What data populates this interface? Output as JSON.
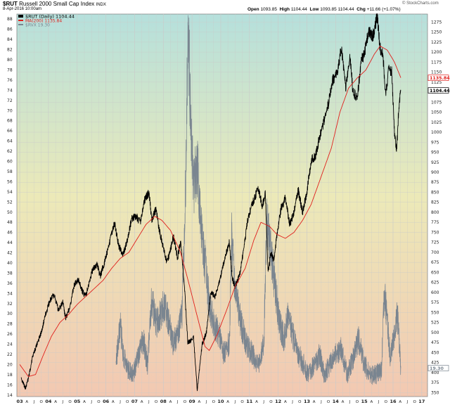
{
  "header": {
    "symbol": "$RUT",
    "name": "Russell 2000 Small Cap Index",
    "exchange": "INDX",
    "date_line": "8-Apr-2016 10:00am",
    "open_label": "Open",
    "open_value": "1093.85",
    "high_label": "High",
    "high_value": "1104.44",
    "low_label": "Low",
    "low_value": "1093.85",
    "last_value": "1104.44",
    "chg_label": "Chg",
    "chg_value": "+11.66 (+1.07%)",
    "brand": "© StockCharts.com"
  },
  "legend": {
    "series1": "$RUT (Daily) 1104.44",
    "series2": "MA(200) 1135.84",
    "series3": "$RVX 19.30"
  },
  "colors": {
    "price": "#000000",
    "ma": "#e0201c",
    "rvx": "#7a8590",
    "bg_top": "#b5e0dc",
    "bg_mid": "#ece9b8",
    "bg_bottom": "#f2c8b2"
  },
  "chart_data": {
    "type": "line",
    "x_axis": {
      "labels": [
        {
          "t": 2003.0,
          "label": "03"
        },
        {
          "t": 2003.25,
          "label": "A"
        },
        {
          "t": 2003.5,
          "label": "J"
        },
        {
          "t": 2003.75,
          "label": "O"
        },
        {
          "t": 2004.0,
          "label": "04"
        },
        {
          "t": 2004.25,
          "label": "A"
        },
        {
          "t": 2004.5,
          "label": "J"
        },
        {
          "t": 2004.75,
          "label": "O"
        },
        {
          "t": 2005.0,
          "label": "05"
        },
        {
          "t": 2005.25,
          "label": "A"
        },
        {
          "t": 2005.5,
          "label": "J"
        },
        {
          "t": 2005.75,
          "label": "O"
        },
        {
          "t": 2006.0,
          "label": "06"
        },
        {
          "t": 2006.25,
          "label": "A"
        },
        {
          "t": 2006.5,
          "label": "J"
        },
        {
          "t": 2006.75,
          "label": "O"
        },
        {
          "t": 2007.0,
          "label": "07"
        },
        {
          "t": 2007.25,
          "label": "A"
        },
        {
          "t": 2007.5,
          "label": "J"
        },
        {
          "t": 2007.75,
          "label": "O"
        },
        {
          "t": 2008.0,
          "label": "08"
        },
        {
          "t": 2008.25,
          "label": "A"
        },
        {
          "t": 2008.5,
          "label": "J"
        },
        {
          "t": 2008.75,
          "label": "O"
        },
        {
          "t": 2009.0,
          "label": "09"
        },
        {
          "t": 2009.25,
          "label": "A"
        },
        {
          "t": 2009.5,
          "label": "J"
        },
        {
          "t": 2009.75,
          "label": "O"
        },
        {
          "t": 2010.0,
          "label": "10"
        },
        {
          "t": 2010.25,
          "label": "A"
        },
        {
          "t": 2010.5,
          "label": "J"
        },
        {
          "t": 2010.75,
          "label": "O"
        },
        {
          "t": 2011.0,
          "label": "11"
        },
        {
          "t": 2011.25,
          "label": "A"
        },
        {
          "t": 2011.5,
          "label": "J"
        },
        {
          "t": 2011.75,
          "label": "O"
        },
        {
          "t": 2012.0,
          "label": "12"
        },
        {
          "t": 2012.25,
          "label": "A"
        },
        {
          "t": 2012.5,
          "label": "J"
        },
        {
          "t": 2012.75,
          "label": "O"
        },
        {
          "t": 2013.0,
          "label": "13"
        },
        {
          "t": 2013.25,
          "label": "A"
        },
        {
          "t": 2013.5,
          "label": "J"
        },
        {
          "t": 2013.75,
          "label": "O"
        },
        {
          "t": 2014.0,
          "label": "14"
        },
        {
          "t": 2014.25,
          "label": "A"
        },
        {
          "t": 2014.5,
          "label": "J"
        },
        {
          "t": 2014.75,
          "label": "O"
        },
        {
          "t": 2015.0,
          "label": "15"
        },
        {
          "t": 2015.25,
          "label": "A"
        },
        {
          "t": 2015.5,
          "label": "J"
        },
        {
          "t": 2015.75,
          "label": "O"
        },
        {
          "t": 2016.0,
          "label": "16"
        },
        {
          "t": 2016.25,
          "label": "A"
        },
        {
          "t": 2016.5,
          "label": "J"
        },
        {
          "t": 2016.75,
          "label": "O"
        },
        {
          "t": 2017.0,
          "label": "17"
        }
      ],
      "range": [
        2002.9,
        2017.2
      ]
    },
    "left_axis": {
      "ticks": [
        14,
        16,
        18,
        20,
        22,
        24,
        26,
        28,
        30,
        32,
        34,
        36,
        38,
        40,
        42,
        44,
        46,
        48,
        50,
        52,
        54,
        56,
        58,
        60,
        62,
        64,
        66,
        68,
        70,
        72,
        74,
        76,
        78,
        80,
        82,
        84,
        86,
        88
      ],
      "range": [
        13.7,
        89
      ]
    },
    "right_axis": {
      "ticks": [
        350,
        375,
        400,
        425,
        450,
        475,
        500,
        525,
        550,
        575,
        600,
        625,
        650,
        675,
        700,
        725,
        750,
        775,
        800,
        825,
        850,
        875,
        900,
        925,
        950,
        975,
        1000,
        1025,
        1050,
        1075,
        1100,
        1125,
        1150,
        1175,
        1200,
        1225,
        1250,
        1275
      ],
      "range": [
        340,
        1295
      ]
    },
    "series": [
      {
        "name": "$RUT (Daily)",
        "axis": "right",
        "points": [
          [
            2003.05,
            385
          ],
          [
            2003.2,
            360
          ],
          [
            2003.3,
            385
          ],
          [
            2003.45,
            440
          ],
          [
            2003.6,
            470
          ],
          [
            2003.75,
            500
          ],
          [
            2003.9,
            545
          ],
          [
            2004.05,
            580
          ],
          [
            2004.2,
            595
          ],
          [
            2004.35,
            555
          ],
          [
            2004.5,
            575
          ],
          [
            2004.6,
            535
          ],
          [
            2004.75,
            565
          ],
          [
            2004.9,
            620
          ],
          [
            2005.05,
            630
          ],
          [
            2005.2,
            600
          ],
          [
            2005.3,
            590
          ],
          [
            2005.4,
            620
          ],
          [
            2005.55,
            660
          ],
          [
            2005.7,
            670
          ],
          [
            2005.8,
            640
          ],
          [
            2005.95,
            675
          ],
          [
            2006.1,
            715
          ],
          [
            2006.3,
            775
          ],
          [
            2006.45,
            715
          ],
          [
            2006.6,
            695
          ],
          [
            2006.75,
            730
          ],
          [
            2006.9,
            785
          ],
          [
            2007.05,
            790
          ],
          [
            2007.2,
            775
          ],
          [
            2007.35,
            830
          ],
          [
            2007.5,
            850
          ],
          [
            2007.6,
            780
          ],
          [
            2007.75,
            810
          ],
          [
            2007.85,
            760
          ],
          [
            2008.0,
            710
          ],
          [
            2008.1,
            680
          ],
          [
            2008.2,
            690
          ],
          [
            2008.35,
            740
          ],
          [
            2008.5,
            685
          ],
          [
            2008.6,
            730
          ],
          [
            2008.75,
            600
          ],
          [
            2008.85,
            475
          ],
          [
            2008.95,
            480
          ],
          [
            2009.05,
            490
          ],
          [
            2009.18,
            355
          ],
          [
            2009.35,
            470
          ],
          [
            2009.5,
            500
          ],
          [
            2009.65,
            600
          ],
          [
            2009.8,
            590
          ],
          [
            2009.95,
            625
          ],
          [
            2010.15,
            690
          ],
          [
            2010.3,
            725
          ],
          [
            2010.4,
            635
          ],
          [
            2010.5,
            615
          ],
          [
            2010.65,
            640
          ],
          [
            2010.8,
            710
          ],
          [
            2010.95,
            785
          ],
          [
            2011.1,
            820
          ],
          [
            2011.3,
            860
          ],
          [
            2011.45,
            815
          ],
          [
            2011.55,
            850
          ],
          [
            2011.65,
            650
          ],
          [
            2011.75,
            700
          ],
          [
            2011.85,
            680
          ],
          [
            2011.95,
            740
          ],
          [
            2012.1,
            810
          ],
          [
            2012.25,
            835
          ],
          [
            2012.4,
            770
          ],
          [
            2012.55,
            800
          ],
          [
            2012.7,
            855
          ],
          [
            2012.85,
            800
          ],
          [
            2013.0,
            850
          ],
          [
            2013.15,
            930
          ],
          [
            2013.3,
            940
          ],
          [
            2013.45,
            990
          ],
          [
            2013.6,
            1030
          ],
          [
            2013.75,
            1070
          ],
          [
            2013.9,
            1130
          ],
          [
            2014.05,
            1145
          ],
          [
            2014.2,
            1210
          ],
          [
            2014.35,
            1110
          ],
          [
            2014.5,
            1190
          ],
          [
            2014.6,
            1105
          ],
          [
            2014.75,
            1085
          ],
          [
            2014.9,
            1180
          ],
          [
            2015.0,
            1195
          ],
          [
            2015.15,
            1250
          ],
          [
            2015.3,
            1240
          ],
          [
            2015.45,
            1290
          ],
          [
            2015.55,
            1210
          ],
          [
            2015.65,
            1190
          ],
          [
            2015.75,
            1090
          ],
          [
            2015.85,
            1160
          ],
          [
            2015.95,
            1150
          ],
          [
            2016.05,
            1000
          ],
          [
            2016.12,
            950
          ],
          [
            2016.2,
            1060
          ],
          [
            2016.27,
            1104
          ]
        ]
      },
      {
        "name": "MA(200)",
        "axis": "right",
        "points": [
          [
            2003.0,
            420
          ],
          [
            2003.3,
            390
          ],
          [
            2003.55,
            395
          ],
          [
            2003.8,
            440
          ],
          [
            2004.1,
            490
          ],
          [
            2004.4,
            525
          ],
          [
            2004.7,
            545
          ],
          [
            2005.0,
            570
          ],
          [
            2005.3,
            590
          ],
          [
            2005.6,
            610
          ],
          [
            2005.9,
            630
          ],
          [
            2006.2,
            660
          ],
          [
            2006.5,
            685
          ],
          [
            2006.8,
            700
          ],
          [
            2007.1,
            735
          ],
          [
            2007.4,
            770
          ],
          [
            2007.7,
            790
          ],
          [
            2007.95,
            780
          ],
          [
            2008.25,
            755
          ],
          [
            2008.6,
            700
          ],
          [
            2008.9,
            620
          ],
          [
            2009.2,
            535
          ],
          [
            2009.45,
            465
          ],
          [
            2009.6,
            455
          ],
          [
            2009.85,
            490
          ],
          [
            2010.2,
            555
          ],
          [
            2010.5,
            615
          ],
          [
            2010.85,
            660
          ],
          [
            2011.15,
            730
          ],
          [
            2011.4,
            775
          ],
          [
            2011.7,
            765
          ],
          [
            2011.95,
            745
          ],
          [
            2012.25,
            735
          ],
          [
            2012.55,
            750
          ],
          [
            2012.85,
            780
          ],
          [
            2013.15,
            820
          ],
          [
            2013.5,
            890
          ],
          [
            2013.85,
            960
          ],
          [
            2014.15,
            1050
          ],
          [
            2014.45,
            1110
          ],
          [
            2014.75,
            1135
          ],
          [
            2015.05,
            1155
          ],
          [
            2015.35,
            1195
          ],
          [
            2015.55,
            1215
          ],
          [
            2015.8,
            1205
          ],
          [
            2016.05,
            1175
          ],
          [
            2016.27,
            1136
          ]
        ]
      },
      {
        "name": "$RVX",
        "axis": "left",
        "points": [
          [
            2006.35,
            20
          ],
          [
            2006.5,
            28
          ],
          [
            2006.6,
            22
          ],
          [
            2006.75,
            19
          ],
          [
            2006.95,
            18
          ],
          [
            2007.15,
            22
          ],
          [
            2007.3,
            25
          ],
          [
            2007.45,
            20
          ],
          [
            2007.6,
            33
          ],
          [
            2007.75,
            28
          ],
          [
            2007.9,
            30
          ],
          [
            2008.05,
            32
          ],
          [
            2008.2,
            28
          ],
          [
            2008.35,
            24
          ],
          [
            2008.5,
            26
          ],
          [
            2008.65,
            30
          ],
          [
            2008.78,
            55
          ],
          [
            2008.86,
            87
          ],
          [
            2008.95,
            70
          ],
          [
            2009.05,
            55
          ],
          [
            2009.18,
            60
          ],
          [
            2009.3,
            48
          ],
          [
            2009.45,
            40
          ],
          [
            2009.6,
            32
          ],
          [
            2009.75,
            28
          ],
          [
            2009.95,
            26
          ],
          [
            2010.1,
            22
          ],
          [
            2010.3,
            24
          ],
          [
            2010.38,
            45
          ],
          [
            2010.5,
            35
          ],
          [
            2010.7,
            28
          ],
          [
            2010.9,
            24
          ],
          [
            2011.1,
            22
          ],
          [
            2011.3,
            20
          ],
          [
            2011.5,
            24
          ],
          [
            2011.6,
            48
          ],
          [
            2011.75,
            42
          ],
          [
            2011.9,
            35
          ],
          [
            2012.05,
            28
          ],
          [
            2012.2,
            25
          ],
          [
            2012.35,
            30
          ],
          [
            2012.5,
            26
          ],
          [
            2012.7,
            22
          ],
          [
            2012.9,
            20
          ],
          [
            2013.05,
            18
          ],
          [
            2013.25,
            20
          ],
          [
            2013.45,
            22
          ],
          [
            2013.6,
            18
          ],
          [
            2013.8,
            20
          ],
          [
            2014.0,
            22
          ],
          [
            2014.2,
            23
          ],
          [
            2014.4,
            18
          ],
          [
            2014.6,
            21
          ],
          [
            2014.8,
            25
          ],
          [
            2015.0,
            20
          ],
          [
            2015.2,
            18
          ],
          [
            2015.4,
            18
          ],
          [
            2015.6,
            19
          ],
          [
            2015.7,
            35
          ],
          [
            2015.8,
            28
          ],
          [
            2015.9,
            22
          ],
          [
            2016.05,
            26
          ],
          [
            2016.15,
            30
          ],
          [
            2016.27,
            19.3
          ]
        ]
      }
    ],
    "grid": true,
    "last_value_labels": {
      "ma": "1135.84",
      "price": "1104.44",
      "rvx": "19.30"
    }
  }
}
